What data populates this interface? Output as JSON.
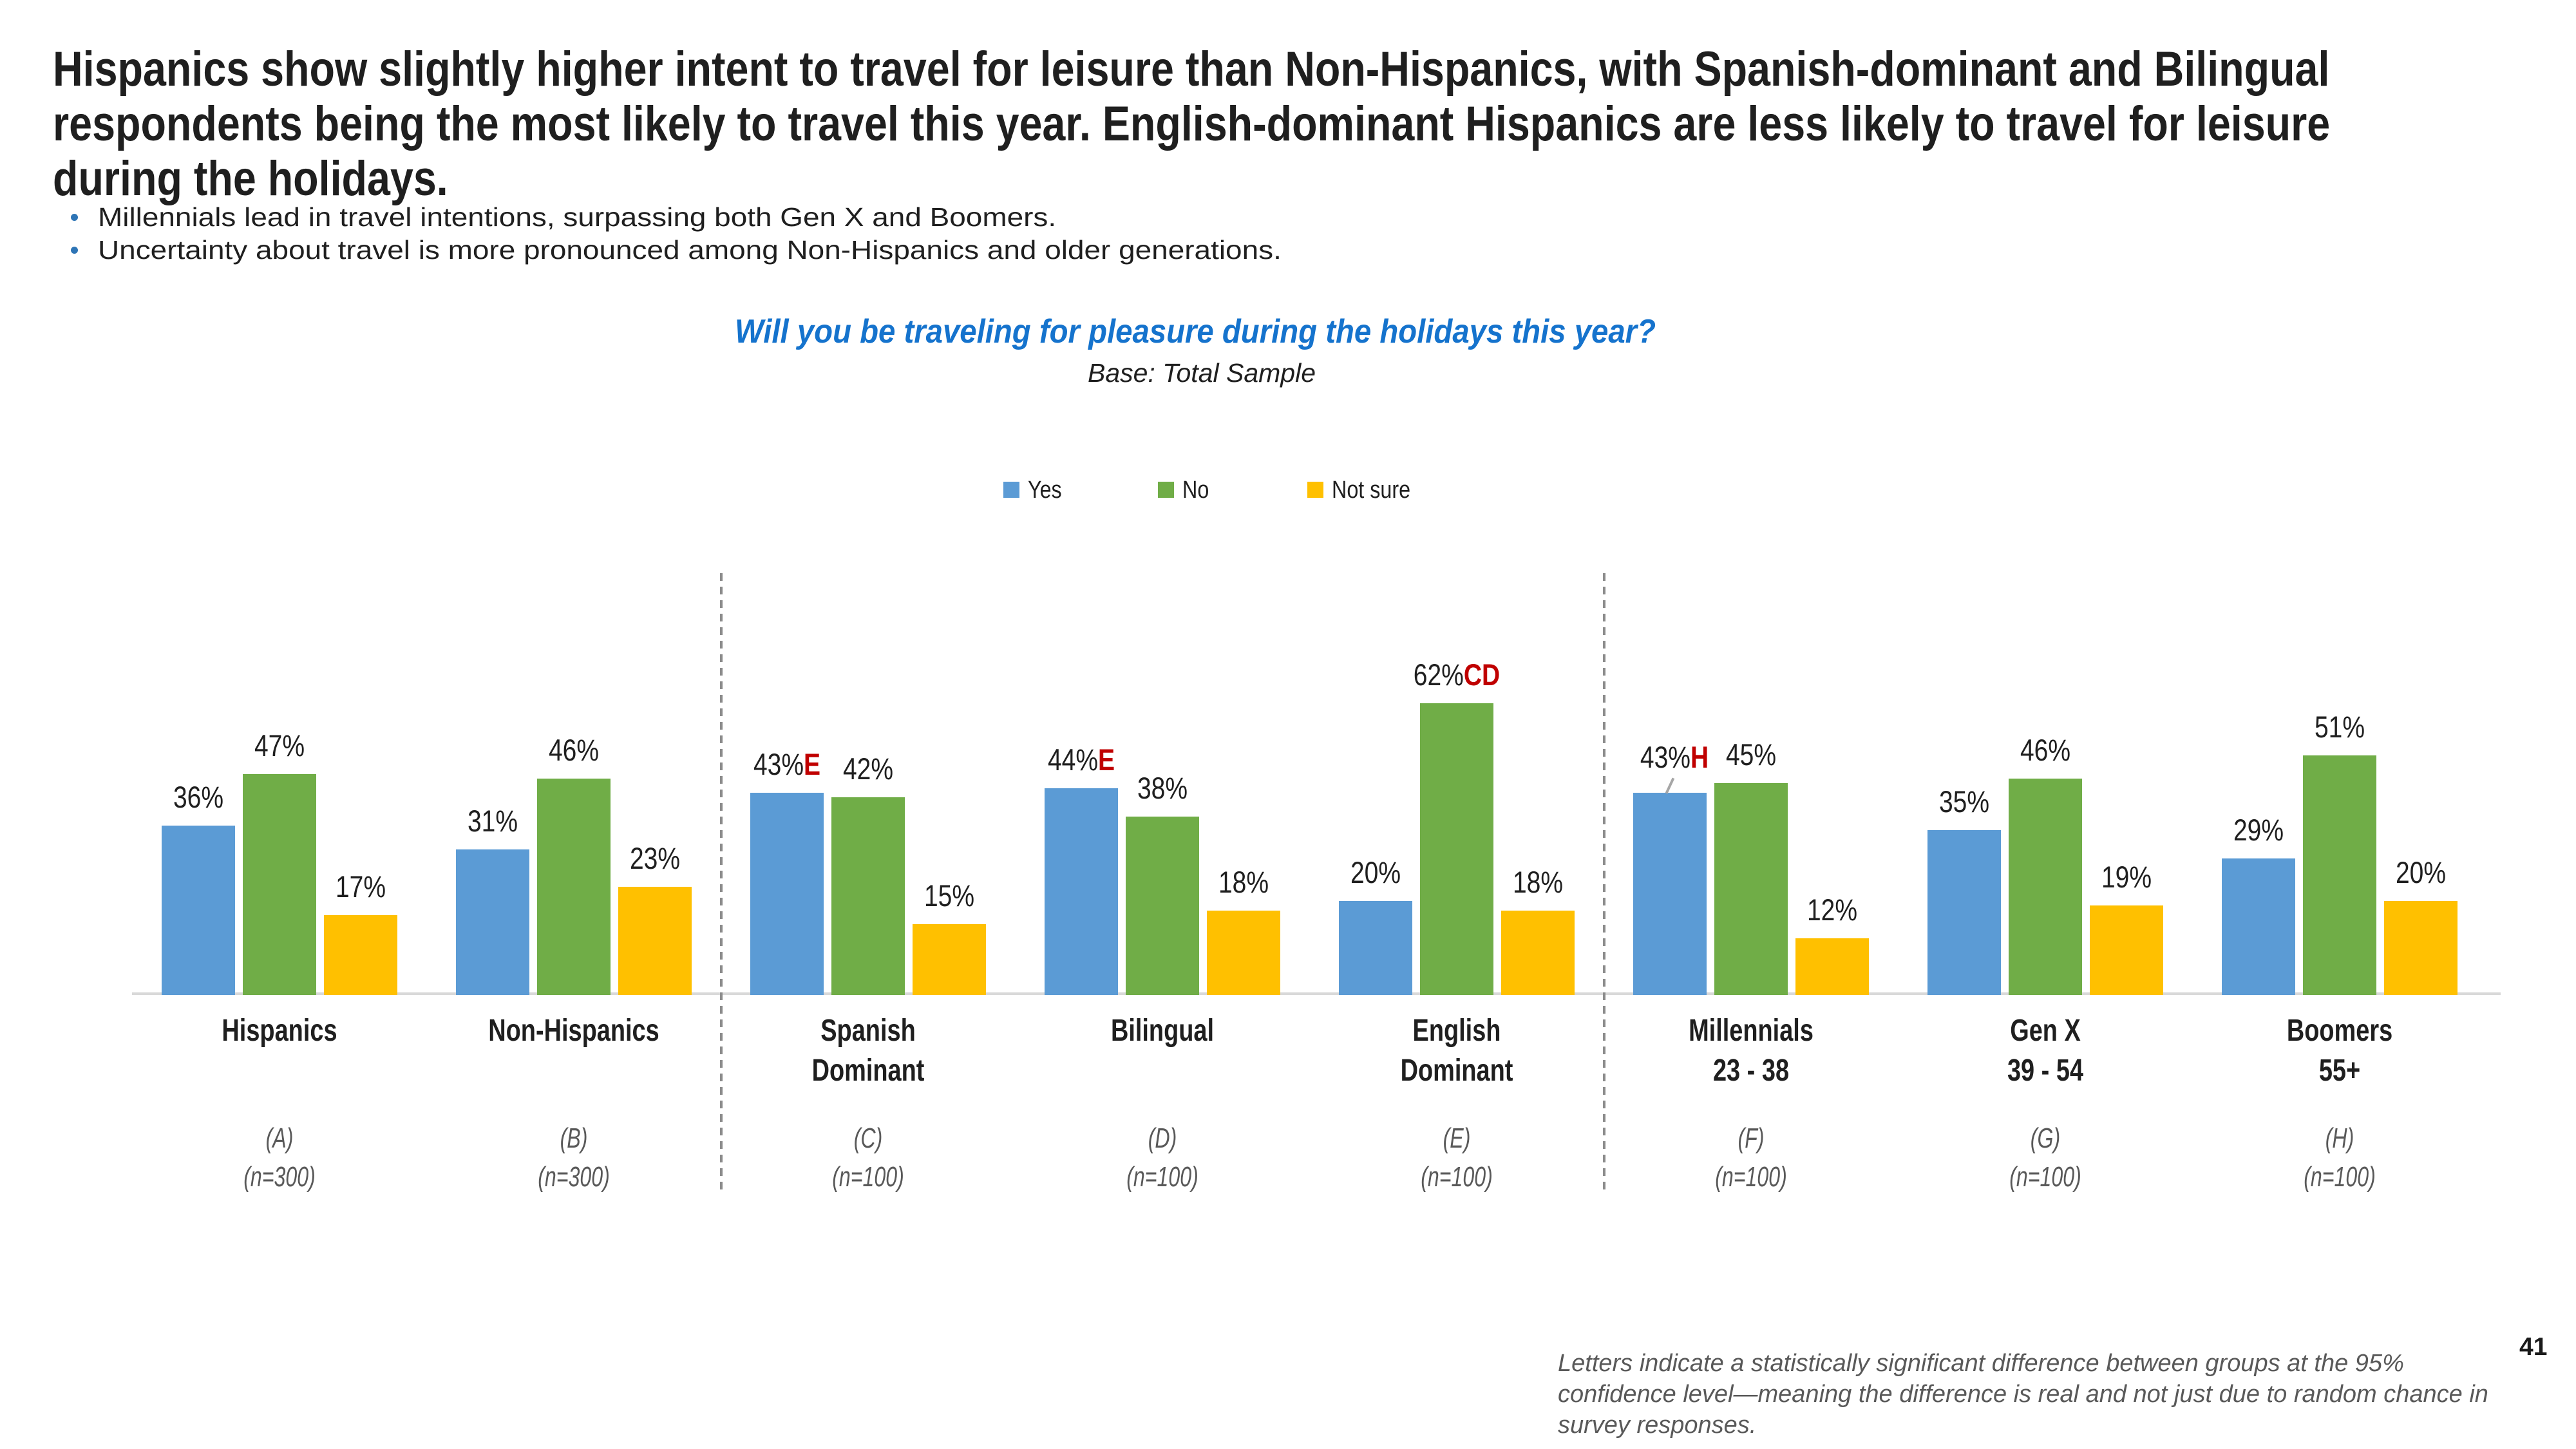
{
  "slide": {
    "title_lines": [
      "Hispanics show slightly higher intent to travel for leisure than Non-Hispanics, with Spanish-dominant and Bilingual",
      "respondents being the most likely to travel this year. English-dominant Hispanics are less likely to travel for leisure",
      "during the holidays."
    ],
    "bullets": [
      "Millennials lead in travel intentions, surpassing both Gen X and Boomers.",
      "Uncertainty about travel is more pronounced among Non-Hispanics and older generations."
    ],
    "footnote_lines": [
      "Letters indicate a statistically significant difference between groups at the 95%",
      "confidence level—meaning the difference is real and not just due to random chance in",
      "survey responses."
    ],
    "page_number": "41"
  },
  "colors": {
    "yes": "#5B9BD5",
    "no": "#70AD47",
    "not_sure": "#FFC000",
    "sig": "#C00000",
    "chart_title": "#1573CD",
    "muted": "#595959",
    "axis": "#D9D9D9",
    "separator": "#8C8C8C",
    "bullet": "#2E75B6"
  },
  "chart_data": {
    "type": "bar",
    "title": "Will you be traveling for pleasure during the holidays this year?",
    "subtitle": "Base: Total Sample",
    "unit": "percent",
    "ylim": [
      0,
      70
    ],
    "legend_position": "top-center",
    "legend": [
      {
        "name": "Yes",
        "color": "#5B9BD5"
      },
      {
        "name": "No",
        "color": "#70AD47"
      },
      {
        "name": "Not sure",
        "color": "#FFC000"
      }
    ],
    "separators_after_group": [
      1,
      4
    ],
    "groups": [
      {
        "label_lines": [
          "Hispanics"
        ],
        "letter": "(A)",
        "sample": "(n=300)",
        "values": [
          {
            "series": "Yes",
            "value": 36,
            "label": "36%"
          },
          {
            "series": "No",
            "value": 47,
            "label": "47%"
          },
          {
            "series": "Not sure",
            "value": 17,
            "label": "17%"
          }
        ]
      },
      {
        "label_lines": [
          "Non-Hispanics"
        ],
        "letter": "(B)",
        "sample": "(n=300)",
        "values": [
          {
            "series": "Yes",
            "value": 31,
            "label": "31%"
          },
          {
            "series": "No",
            "value": 46,
            "label": "46%"
          },
          {
            "series": "Not sure",
            "value": 23,
            "label": "23%"
          }
        ]
      },
      {
        "label_lines": [
          "Spanish",
          "Dominant"
        ],
        "letter": "(C)",
        "sample": "(n=100)",
        "values": [
          {
            "series": "Yes",
            "value": 43,
            "label": "43%",
            "sig": "E"
          },
          {
            "series": "No",
            "value": 42,
            "label": "42%"
          },
          {
            "series": "Not sure",
            "value": 15,
            "label": "15%"
          }
        ]
      },
      {
        "label_lines": [
          "Bilingual"
        ],
        "letter": "(D)",
        "sample": "(n=100)",
        "values": [
          {
            "series": "Yes",
            "value": 44,
            "label": "44%",
            "sig": "E"
          },
          {
            "series": "No",
            "value": 38,
            "label": "38%"
          },
          {
            "series": "Not sure",
            "value": 18,
            "label": "18%"
          }
        ]
      },
      {
        "label_lines": [
          "English",
          "Dominant"
        ],
        "letter": "(E)",
        "sample": "(n=100)",
        "values": [
          {
            "series": "Yes",
            "value": 20,
            "label": "20%"
          },
          {
            "series": "No",
            "value": 62,
            "label": "62%",
            "sig": "CD"
          },
          {
            "series": "Not sure",
            "value": 18,
            "label": "18%"
          }
        ]
      },
      {
        "label_lines": [
          "Millennials",
          "23 - 38"
        ],
        "letter": "(F)",
        "sample": "(n=100)",
        "values": [
          {
            "series": "Yes",
            "value": 43,
            "label": "43%",
            "sig": "H",
            "leader": true
          },
          {
            "series": "No",
            "value": 45,
            "label": "45%"
          },
          {
            "series": "Not sure",
            "value": 12,
            "label": "12%"
          }
        ]
      },
      {
        "label_lines": [
          "Gen X",
          "39 - 54"
        ],
        "letter": "(G)",
        "sample": "(n=100)",
        "values": [
          {
            "series": "Yes",
            "value": 35,
            "label": "35%"
          },
          {
            "series": "No",
            "value": 46,
            "label": "46%"
          },
          {
            "series": "Not sure",
            "value": 19,
            "label": "19%"
          }
        ]
      },
      {
        "label_lines": [
          "Boomers",
          "55+"
        ],
        "letter": "(H)",
        "sample": "(n=100)",
        "values": [
          {
            "series": "Yes",
            "value": 29,
            "label": "29%"
          },
          {
            "series": "No",
            "value": 51,
            "label": "51%"
          },
          {
            "series": "Not sure",
            "value": 20,
            "label": "20%"
          }
        ]
      }
    ]
  }
}
